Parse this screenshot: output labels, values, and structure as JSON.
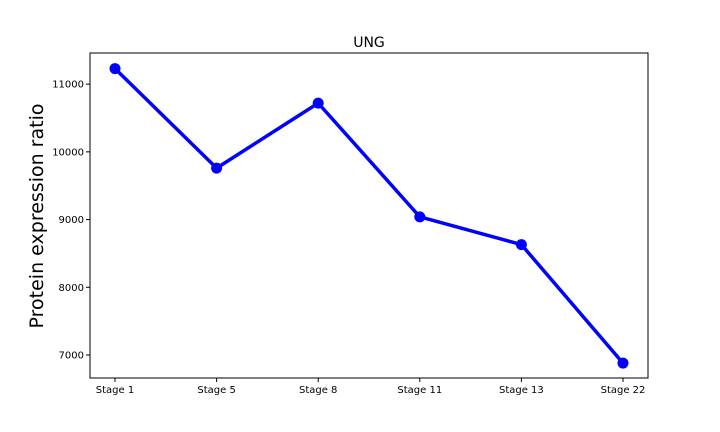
{
  "chart_data": {
    "type": "line",
    "title": "UNG",
    "xlabel": "",
    "ylabel": "Protein expression ratio",
    "categories": [
      "Stage 1",
      "Stage 5",
      "Stage 8",
      "Stage 11",
      "Stage 13",
      "Stage 22"
    ],
    "series": [
      {
        "values": [
          11230,
          9760,
          10720,
          9040,
          8630,
          6880
        ]
      }
    ],
    "ylim": [
      6660,
      11460
    ],
    "yticks": [
      7000,
      8000,
      9000,
      10000,
      11000
    ],
    "ytick_labels": [
      "7000",
      "8000",
      "9000",
      "10000",
      "11000"
    ],
    "grid": false,
    "line_color": "#0000ff",
    "marker_color": "#0000ff"
  }
}
